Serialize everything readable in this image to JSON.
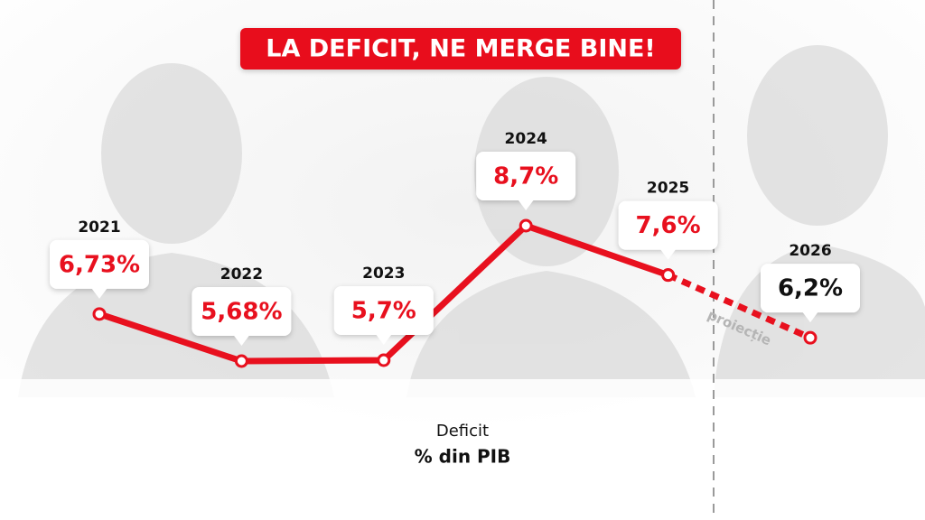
{
  "chart_data": {
    "type": "line",
    "title": "LA DEFICIT, NE MERGE BINE!",
    "x_label": "Deficit",
    "y_label": "% din PIB",
    "categories": [
      "2021",
      "2022",
      "2023",
      "2024",
      "2025",
      "2026"
    ],
    "series": [
      {
        "color": "#e8101e",
        "dashed": false,
        "label_color": "#e8101e",
        "values": [
          6.73,
          5.68,
          5.7,
          8.7,
          7.6,
          null
        ],
        "value_labels": [
          "6,73%",
          "5,68%",
          "5,7%",
          "8,7%",
          "7,6%",
          null
        ]
      },
      {
        "name": "proiecție",
        "color": "#e8101e",
        "dashed": true,
        "label_color": "#111111",
        "values": [
          null,
          null,
          null,
          null,
          7.6,
          6.2
        ],
        "value_labels": [
          null,
          null,
          null,
          null,
          null,
          "6,2%"
        ]
      }
    ]
  }
}
